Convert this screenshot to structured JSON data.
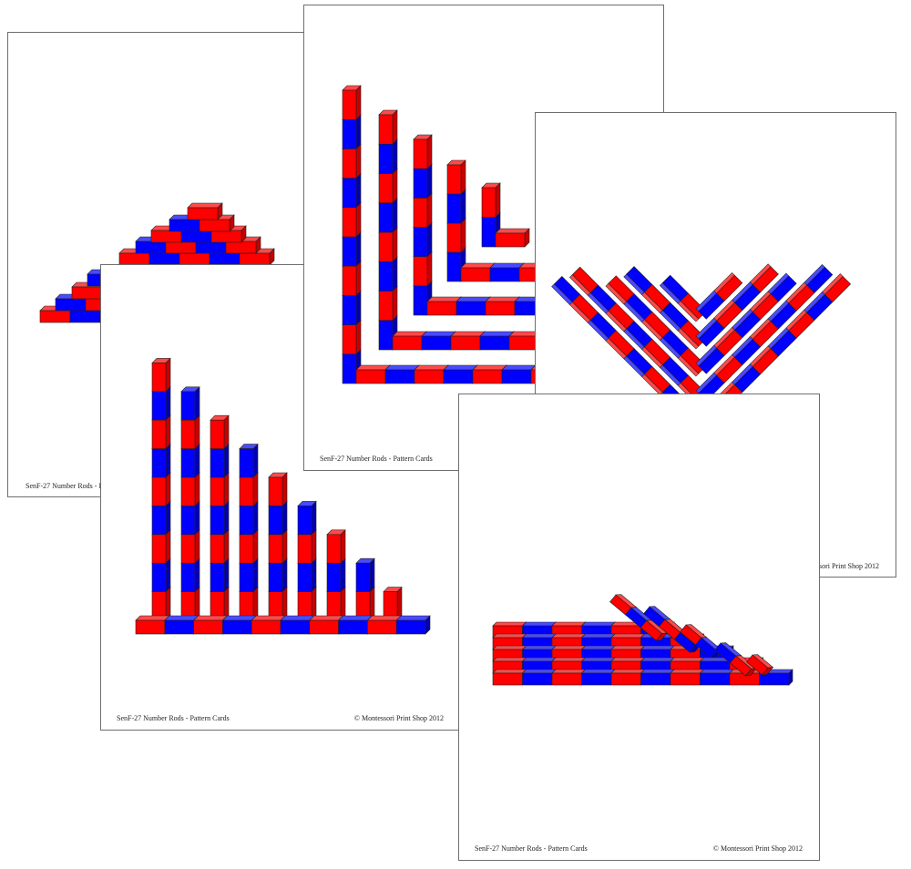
{
  "colors": {
    "red": "#ff0000",
    "blue": "#0000ff",
    "outline": "#222222",
    "card_border": "#6e6e6e"
  },
  "cards": [
    {
      "pattern": "pyramid",
      "caption_left": "SenF-27 Number Rods - Pattern Cards"
    },
    {
      "pattern": "nested-corners",
      "caption_left": "SenF-27 Number Rods - Pattern Cards"
    },
    {
      "pattern": "v-shape",
      "caption_right": "© Montessori Print Shop 2012"
    },
    {
      "pattern": "staircase",
      "caption_left": "SenF-27 Number Rods - Pattern Cards",
      "caption_right": "© Montessori Print Shop 2012"
    },
    {
      "pattern": "stacked-and-leaning",
      "caption_left": "SenF-27 Number Rods - Pattern Cards",
      "caption_right": "© Montessori Print Shop 2012"
    }
  ]
}
